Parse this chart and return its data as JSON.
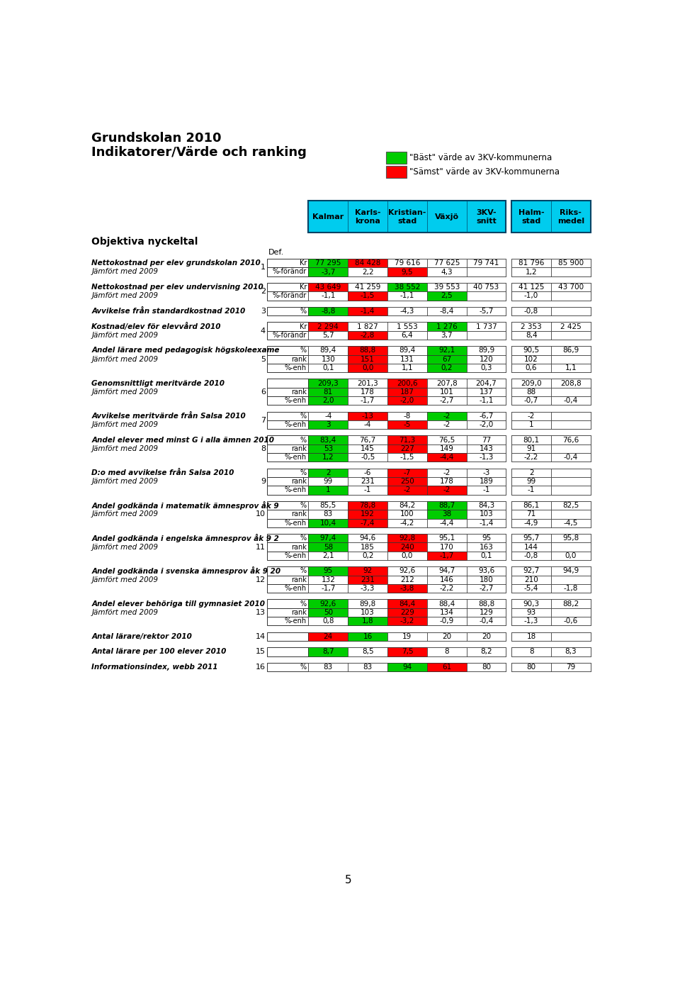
{
  "title1": "Grundskolan 2010",
  "title2": "Indikatorer/Värde och ranking",
  "legend_best": "\"Bäst\" värde av 3KV-kommunerna",
  "legend_worst": "\"Sämst\" värde av 3KV-kommunerna",
  "col_headers": [
    "Kalmar",
    "Karls-\nkrona",
    "Kristian-\nstad",
    "Växjö",
    "3KV-\nsnitt",
    "Halm-\nstad",
    "Riks-\nmedel"
  ],
  "section_label": "Objektiva nyckeltal",
  "def_label": "Def.",
  "footer": "5",
  "rows": [
    {
      "num": "1",
      "label1": "Nettokostnad per elev grundskolan 2010",
      "label2": "Jämfört med 2009",
      "subrows": [
        {
          "type": "Kr",
          "vals": [
            "77 295",
            "84 428",
            "79 616",
            "77 625",
            "79 741",
            "81 796",
            "85 900"
          ],
          "colors": [
            "green",
            "red",
            null,
            null,
            null,
            null,
            null
          ]
        },
        {
          "type": "%-förändr",
          "vals": [
            "-3,7",
            "2,2",
            "9,5",
            "4,3",
            "",
            "1,2",
            ""
          ],
          "colors": [
            "green",
            null,
            "red",
            null,
            null,
            null,
            null
          ]
        }
      ]
    },
    {
      "num": "2",
      "label1": "Nettokostnad per elev undervisning 2010",
      "label2": "Jämfört med 2009",
      "subrows": [
        {
          "type": "Kr",
          "vals": [
            "43 649",
            "41 259",
            "38 552",
            "39 553",
            "40 753",
            "41 125",
            "43 700"
          ],
          "colors": [
            "red",
            null,
            "green",
            null,
            null,
            null,
            null
          ]
        },
        {
          "type": "%-förändr",
          "vals": [
            "-1,1",
            "-1,5",
            "-1,1",
            "2,5",
            "",
            "-1,0",
            ""
          ],
          "colors": [
            null,
            "red",
            null,
            "green",
            null,
            null,
            null
          ]
        }
      ]
    },
    {
      "num": "3",
      "label1": "Avvikelse från standardkostnad 2010",
      "label2": null,
      "subrows": [
        {
          "type": "%",
          "vals": [
            "-8,8",
            "-1,4",
            "-4,3",
            "-8,4",
            "-5,7",
            "-0,8",
            ""
          ],
          "colors": [
            "green",
            "red",
            null,
            null,
            null,
            null,
            null
          ]
        }
      ]
    },
    {
      "num": "4",
      "label1": "Kostnad/elev för elevvård 2010",
      "label2": "Jämfört med 2009",
      "subrows": [
        {
          "type": "Kr",
          "vals": [
            "2 294",
            "1 827",
            "1 553",
            "1 276",
            "1 737",
            "2 353",
            "2 425"
          ],
          "colors": [
            "red",
            null,
            null,
            "green",
            null,
            null,
            null
          ]
        },
        {
          "type": "%-förändr",
          "vals": [
            "5,7",
            "-2,8",
            "6,4",
            "3,7",
            "",
            "8,4",
            ""
          ],
          "colors": [
            null,
            "red",
            null,
            null,
            null,
            null,
            null
          ]
        }
      ]
    },
    {
      "num": "5",
      "label1": "Andel lärare med pedagogisk högskoleexame",
      "label2": "Jämfört med 2009",
      "subrows": [
        {
          "type": "%",
          "vals": [
            "89,4",
            "88,8",
            "89,4",
            "92,1",
            "89,9",
            "90,5",
            "86,9"
          ],
          "colors": [
            null,
            "red",
            null,
            "green",
            null,
            null,
            null
          ]
        },
        {
          "type": "rank",
          "vals": [
            "130",
            "151",
            "131",
            "67",
            "120",
            "102",
            ""
          ],
          "colors": [
            null,
            "red",
            null,
            "green",
            null,
            null,
            null
          ]
        },
        {
          "type": "%-enh",
          "vals": [
            "0,1",
            "0,0",
            "1,1",
            "0,2",
            "0,3",
            "0,6",
            "1,1"
          ],
          "colors": [
            null,
            "red",
            null,
            "green",
            null,
            null,
            null
          ]
        }
      ]
    },
    {
      "num": "6",
      "label1": "Genomsnittligt meritvärde 2010",
      "label2": "Jämfört med 2009",
      "subrows": [
        {
          "type": "",
          "vals": [
            "209,3",
            "201,3",
            "200,6",
            "207,8",
            "204,7",
            "209,0",
            "208,8"
          ],
          "colors": [
            "green",
            null,
            "red",
            null,
            null,
            null,
            null
          ]
        },
        {
          "type": "rank",
          "vals": [
            "81",
            "178",
            "187",
            "101",
            "137",
            "88",
            ""
          ],
          "colors": [
            "green",
            null,
            "red",
            null,
            null,
            null,
            null
          ]
        },
        {
          "type": "%-enh",
          "vals": [
            "2,0",
            "-1,7",
            "-2,0",
            "-2,7",
            "-1,1",
            "-0,7",
            "-0,4"
          ],
          "colors": [
            "green",
            null,
            "red",
            null,
            null,
            null,
            null
          ]
        }
      ]
    },
    {
      "num": "7",
      "label1": "Avvikelse meritvärde från Salsa 2010",
      "label2": "Jämfört med 2009",
      "subrows": [
        {
          "type": "%",
          "vals": [
            "-4",
            "-13",
            "-8",
            "-2",
            "-6,7",
            "-2",
            ""
          ],
          "colors": [
            null,
            "red",
            null,
            "green",
            null,
            null,
            null
          ]
        },
        {
          "type": "%-enh",
          "vals": [
            "3",
            "-4",
            "-5",
            "-2",
            "-2,0",
            "1",
            ""
          ],
          "colors": [
            "green",
            null,
            "red",
            null,
            null,
            null,
            null
          ]
        }
      ]
    },
    {
      "num": "8",
      "label1": "Andel elever med minst G i alla ämnen 2010",
      "label2": "Jämfört med 2009",
      "subrows": [
        {
          "type": "%",
          "vals": [
            "83,4",
            "76,7",
            "71,3",
            "76,5",
            "77",
            "80,1",
            "76,6"
          ],
          "colors": [
            "green",
            null,
            "red",
            null,
            null,
            null,
            null
          ]
        },
        {
          "type": "rank",
          "vals": [
            "53",
            "145",
            "227",
            "149",
            "143",
            "91",
            ""
          ],
          "colors": [
            "green",
            null,
            "red",
            null,
            null,
            null,
            null
          ]
        },
        {
          "type": "%-enh",
          "vals": [
            "1,2",
            "-0,5",
            "-1,5",
            "-4,4",
            "-1,3",
            "-2,2",
            "-0,4"
          ],
          "colors": [
            "green",
            null,
            null,
            "red",
            null,
            null,
            null
          ]
        }
      ]
    },
    {
      "num": "9",
      "label1": "D:o med avvikelse från Salsa 2010",
      "label2": "Jämfört med 2009",
      "subrows": [
        {
          "type": "%",
          "vals": [
            "2",
            "-6",
            "-7",
            "-2",
            "-3",
            "2",
            ""
          ],
          "colors": [
            "green",
            null,
            "red",
            null,
            null,
            null,
            null
          ]
        },
        {
          "type": "rank",
          "vals": [
            "99",
            "231",
            "250",
            "178",
            "189",
            "99",
            ""
          ],
          "colors": [
            null,
            null,
            "red",
            null,
            null,
            null,
            null
          ]
        },
        {
          "type": "%-enh",
          "vals": [
            "1",
            "-1",
            "-2",
            "-2",
            "-1",
            "-1",
            ""
          ],
          "colors": [
            "green",
            null,
            "red",
            "red",
            null,
            null,
            null
          ]
        }
      ]
    },
    {
      "num": "10",
      "label1": "Andel godkända i matematik ämnesprov åk 9",
      "label2": "Jämfört med 2009",
      "subrows": [
        {
          "type": "%",
          "vals": [
            "85,5",
            "78,8",
            "84,2",
            "88,7",
            "84,3",
            "86,1",
            "82,5"
          ],
          "colors": [
            null,
            "red",
            null,
            "green",
            null,
            null,
            null
          ]
        },
        {
          "type": "rank",
          "vals": [
            "83",
            "192",
            "100",
            "38",
            "103",
            "71",
            ""
          ],
          "colors": [
            null,
            "red",
            null,
            "green",
            null,
            null,
            null
          ]
        },
        {
          "type": "%-enh",
          "vals": [
            "10,4",
            "-7,4",
            "-4,2",
            "-4,4",
            "-1,4",
            "-4,9",
            "-4,5"
          ],
          "colors": [
            "green",
            "red",
            null,
            null,
            null,
            null,
            null
          ]
        }
      ]
    },
    {
      "num": "11",
      "label1": "Andel godkända i engelska ämnesprov åk 9 2",
      "label2": "Jämfört med 2009",
      "subrows": [
        {
          "type": "%",
          "vals": [
            "97,4",
            "94,6",
            "92,8",
            "95,1",
            "95",
            "95,7",
            "95,8"
          ],
          "colors": [
            "green",
            null,
            "red",
            null,
            null,
            null,
            null
          ]
        },
        {
          "type": "rank",
          "vals": [
            "58",
            "185",
            "240",
            "170",
            "163",
            "144",
            ""
          ],
          "colors": [
            "green",
            null,
            "red",
            null,
            null,
            null,
            null
          ]
        },
        {
          "type": "%-enh",
          "vals": [
            "2,1",
            "0,2",
            "0,0",
            "-1,7",
            "0,1",
            "-0,8",
            "0,0"
          ],
          "colors": [
            null,
            null,
            null,
            "red",
            null,
            null,
            null
          ]
        }
      ]
    },
    {
      "num": "12",
      "label1": "Andel godkända i svenska ämnesprov åk 9 20",
      "label2": "Jämfört med 2009",
      "subrows": [
        {
          "type": "%",
          "vals": [
            "95",
            "92",
            "92,6",
            "94,7",
            "93,6",
            "92,7",
            "94,9"
          ],
          "colors": [
            "green",
            "red",
            null,
            null,
            null,
            null,
            null
          ]
        },
        {
          "type": "rank",
          "vals": [
            "132",
            "231",
            "212",
            "146",
            "180",
            "210",
            ""
          ],
          "colors": [
            null,
            "red",
            null,
            null,
            null,
            null,
            null
          ]
        },
        {
          "type": "%-enh",
          "vals": [
            "-1,7",
            "-3,3",
            "-3,8",
            "-2,2",
            "-2,7",
            "-5,4",
            "-1,8"
          ],
          "colors": [
            null,
            null,
            "red",
            null,
            null,
            null,
            null
          ]
        }
      ]
    },
    {
      "num": "13",
      "label1": "Andel elever behöriga till gymnasiet 2010",
      "label2": "Jämfört med 2009",
      "subrows": [
        {
          "type": "%",
          "vals": [
            "92,6",
            "89,8",
            "84,4",
            "88,4",
            "88,8",
            "90,3",
            "88,2"
          ],
          "colors": [
            "green",
            null,
            "red",
            null,
            null,
            null,
            null
          ]
        },
        {
          "type": "rank",
          "vals": [
            "50",
            "103",
            "229",
            "134",
            "129",
            "93",
            ""
          ],
          "colors": [
            "green",
            null,
            "red",
            null,
            null,
            null,
            null
          ]
        },
        {
          "type": "%-enh",
          "vals": [
            "0,8",
            "1,8",
            "-3,2",
            "-0,9",
            "-0,4",
            "-1,3",
            "-0,6"
          ],
          "colors": [
            null,
            "green",
            "red",
            null,
            null,
            null,
            null
          ]
        }
      ]
    },
    {
      "num": "14",
      "label1": "Antal lärare/rektor 2010",
      "label2": null,
      "subrows": [
        {
          "type": "",
          "vals": [
            "24",
            "16",
            "19",
            "20",
            "20",
            "18",
            ""
          ],
          "colors": [
            "red",
            "green",
            null,
            null,
            null,
            null,
            null
          ]
        }
      ]
    },
    {
      "num": "15",
      "label1": "Antal lärare per 100 elever 2010",
      "label2": null,
      "subrows": [
        {
          "type": "",
          "vals": [
            "8,7",
            "8,5",
            "7,5",
            "8",
            "8,2",
            "8",
            "8,3"
          ],
          "colors": [
            "green",
            null,
            "red",
            null,
            null,
            null,
            null
          ]
        }
      ]
    },
    {
      "num": "16",
      "label1": "Informationsindex, webb 2011",
      "label2": null,
      "subrows": [
        {
          "type": "%",
          "vals": [
            "83",
            "83",
            "94",
            "61",
            "80",
            "80",
            "79"
          ],
          "colors": [
            null,
            null,
            "green",
            "red",
            null,
            null,
            null
          ]
        }
      ]
    }
  ]
}
